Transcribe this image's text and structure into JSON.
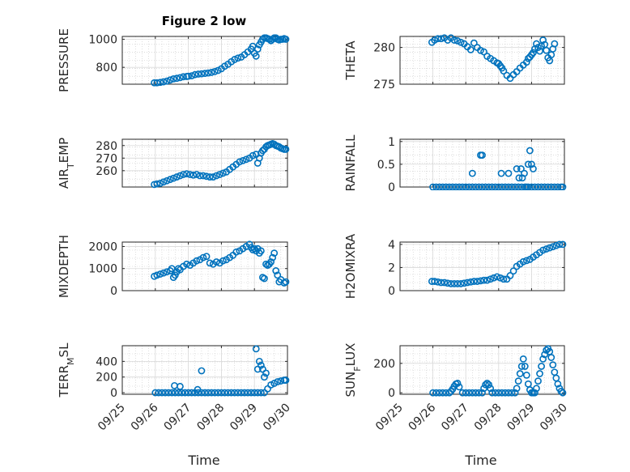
{
  "figure": {
    "title": "Figure 2 low"
  },
  "chart_data": [
    {
      "type": "scatter",
      "title": "Figure 2 low",
      "ylabel": "PRESSURE",
      "ylim": [
        680,
        1020
      ],
      "yticks": [
        800,
        1000
      ],
      "ytick_labels": [
        "800",
        "1000"
      ],
      "x": [
        0.97,
        1.05,
        1.15,
        1.25,
        1.35,
        1.45,
        1.55,
        1.65,
        1.75,
        1.85,
        1.95,
        2.0,
        2.1,
        2.2,
        2.3,
        2.4,
        2.5,
        2.6,
        2.7,
        2.8,
        2.9,
        3.0,
        3.1,
        3.2,
        3.3,
        3.4,
        3.5,
        3.6,
        3.7,
        3.8,
        3.9,
        3.95,
        4.0,
        4.05,
        4.1,
        4.15,
        4.2,
        4.25,
        4.3,
        4.35,
        4.4,
        4.45,
        4.5,
        4.55,
        4.6,
        4.65,
        4.7,
        4.75,
        4.8,
        4.85,
        4.9,
        4.95
      ],
      "y": [
        690,
        690,
        693,
        697,
        702,
        710,
        718,
        722,
        727,
        733,
        735,
        737,
        740,
        748,
        752,
        754,
        757,
        760,
        764,
        770,
        778,
        790,
        808,
        822,
        840,
        856,
        866,
        873,
        890,
        910,
        930,
        950,
        900,
        880,
        930,
        960,
        980,
        1000,
        1010,
        1010,
        1005,
        1000,
        990,
        1000,
        1010,
        1010,
        1000,
        995,
        1000,
        1000,
        1005,
        1000
      ]
    },
    {
      "type": "scatter",
      "ylabel": "THETA",
      "ylim": [
        275,
        281.5
      ],
      "yticks": [
        275,
        280
      ],
      "ytick_labels": [
        "275",
        "280"
      ],
      "x": [
        0.97,
        1.05,
        1.15,
        1.25,
        1.35,
        1.45,
        1.55,
        1.65,
        1.75,
        1.85,
        1.95,
        2.05,
        2.15,
        2.25,
        2.35,
        2.45,
        2.55,
        2.65,
        2.75,
        2.85,
        2.95,
        3.0,
        3.05,
        3.1,
        3.15,
        3.25,
        3.35,
        3.45,
        3.55,
        3.65,
        3.75,
        3.85,
        3.9,
        3.95,
        4.0,
        4.05,
        4.1,
        4.15,
        4.2,
        4.25,
        4.3,
        4.35,
        4.4,
        4.45,
        4.5,
        4.55,
        4.6,
        4.65,
        4.7
      ],
      "y": [
        280.7,
        281.0,
        281.2,
        281.2,
        281.3,
        281.0,
        281.3,
        281.0,
        280.9,
        280.7,
        280.5,
        280.1,
        279.7,
        280.6,
        280.0,
        279.6,
        279.4,
        278.8,
        278.5,
        278.2,
        277.9,
        277.8,
        277.5,
        277.2,
        276.8,
        276.2,
        275.8,
        276.3,
        276.7,
        277.2,
        277.6,
        278.0,
        278.5,
        278.7,
        279.0,
        279.3,
        279.8,
        280.5,
        280.0,
        279.5,
        280.2,
        281.0,
        280.4,
        279.6,
        278.6,
        278.2,
        279.0,
        279.8,
        280.5
      ]
    },
    {
      "type": "scatter",
      "ylabel": "AIR_TEMP",
      "ylim": [
        247,
        285
      ],
      "yticks": [
        260,
        270,
        280
      ],
      "ytick_labels": [
        "260",
        "270",
        "280"
      ],
      "x": [
        0.97,
        1.05,
        1.15,
        1.25,
        1.35,
        1.45,
        1.55,
        1.65,
        1.75,
        1.85,
        1.95,
        2.05,
        2.15,
        2.25,
        2.35,
        2.45,
        2.55,
        2.65,
        2.75,
        2.85,
        2.95,
        3.05,
        3.15,
        3.25,
        3.35,
        3.45,
        3.55,
        3.65,
        3.75,
        3.85,
        3.95,
        4.05,
        4.1,
        4.15,
        4.2,
        4.25,
        4.3,
        4.35,
        4.4,
        4.45,
        4.5,
        4.55,
        4.6,
        4.65,
        4.7,
        4.75,
        4.8,
        4.85,
        4.9,
        4.95
      ],
      "y": [
        249,
        249.5,
        250,
        251,
        252,
        253,
        254,
        255,
        256,
        257,
        257.5,
        257,
        256.5,
        257,
        256,
        256,
        255.5,
        255,
        255,
        256,
        257,
        258,
        259,
        261,
        263,
        265,
        267,
        268,
        269,
        270,
        272,
        273,
        266,
        270,
        274,
        276,
        277,
        279,
        280,
        280.5,
        281,
        281.5,
        281,
        280,
        279.5,
        279,
        278,
        277.5,
        277,
        277
      ]
    },
    {
      "type": "scatter",
      "ylabel": "RAINFALL",
      "ylim": [
        0,
        1.05
      ],
      "yticks": [
        0,
        0.5,
        1
      ],
      "ytick_labels": [
        "0",
        "0.5",
        "1"
      ],
      "x": [
        1.0,
        1.1,
        1.2,
        1.3,
        1.4,
        1.5,
        1.6,
        1.7,
        1.8,
        1.9,
        2.0,
        2.1,
        2.2,
        2.3,
        2.4,
        2.5,
        2.6,
        2.7,
        2.8,
        2.9,
        3.0,
        3.1,
        3.2,
        3.3,
        3.4,
        3.5,
        3.6,
        3.7,
        3.8,
        3.9,
        4.0,
        4.1,
        4.2,
        4.3,
        4.4,
        4.5,
        4.6,
        4.7,
        4.8,
        4.9,
        4.95,
        2.2,
        2.45,
        2.5,
        3.08,
        3.3,
        3.55,
        3.62,
        3.68,
        3.72,
        3.78,
        3.85,
        3.9,
        3.95,
        4.0,
        4.05
      ],
      "y": [
        0,
        0,
        0,
        0,
        0,
        0,
        0,
        0,
        0,
        0,
        0,
        0,
        0,
        0,
        0,
        0,
        0,
        0,
        0,
        0,
        0,
        0,
        0,
        0,
        0,
        0,
        0,
        0,
        0,
        0,
        0,
        0,
        0,
        0,
        0,
        0,
        0,
        0,
        0,
        0,
        0,
        0.3,
        0.7,
        0.7,
        0.3,
        0.3,
        0.4,
        0.2,
        0.4,
        0.2,
        0.3,
        0.0,
        0.5,
        0.8,
        0.5,
        0.4
      ]
    },
    {
      "type": "scatter",
      "ylabel": "MIXDEPTH",
      "ylim": [
        0,
        2200
      ],
      "yticks": [
        0,
        1000,
        2000
      ],
      "ytick_labels": [
        "0",
        "1000",
        "2000"
      ],
      "x": [
        0.97,
        1.05,
        1.15,
        1.25,
        1.35,
        1.45,
        1.5,
        1.55,
        1.6,
        1.65,
        1.7,
        1.75,
        1.85,
        1.95,
        2.05,
        2.15,
        2.25,
        2.35,
        2.45,
        2.55,
        2.65,
        2.75,
        2.85,
        2.95,
        3.05,
        3.15,
        3.25,
        3.35,
        3.45,
        3.55,
        3.65,
        3.75,
        3.85,
        3.9,
        3.95,
        4.0,
        4.05,
        4.1,
        4.15,
        4.2,
        4.25,
        4.3,
        4.35,
        4.4,
        4.45,
        4.5,
        4.55,
        4.6,
        4.65,
        4.7,
        4.75,
        4.8,
        4.9,
        4.95
      ],
      "y": [
        650,
        700,
        750,
        800,
        850,
        900,
        1000,
        600,
        700,
        850,
        1000,
        950,
        1100,
        1200,
        1150,
        1250,
        1350,
        1400,
        1500,
        1550,
        1250,
        1200,
        1300,
        1250,
        1350,
        1400,
        1500,
        1600,
        1750,
        1800,
        1900,
        2000,
        2100,
        1950,
        1850,
        1900,
        1800,
        1900,
        1700,
        1800,
        600,
        550,
        1200,
        1150,
        1200,
        1300,
        1500,
        1700,
        900,
        700,
        400,
        500,
        350,
        400
      ]
    },
    {
      "type": "scatter",
      "ylabel": "H2OMIXRA",
      "ylim": [
        0,
        4.2
      ],
      "yticks": [
        0,
        2,
        4
      ],
      "ytick_labels": [
        "0",
        "2",
        "4"
      ],
      "x": [
        0.97,
        1.05,
        1.15,
        1.25,
        1.35,
        1.45,
        1.55,
        1.65,
        1.75,
        1.85,
        1.95,
        2.05,
        2.15,
        2.25,
        2.35,
        2.45,
        2.55,
        2.65,
        2.75,
        2.85,
        2.95,
        3.05,
        3.15,
        3.25,
        3.35,
        3.45,
        3.55,
        3.65,
        3.75,
        3.85,
        3.95,
        4.05,
        4.15,
        4.25,
        4.35,
        4.45,
        4.55,
        4.65,
        4.75,
        4.85,
        4.95
      ],
      "y": [
        0.8,
        0.8,
        0.75,
        0.7,
        0.7,
        0.65,
        0.6,
        0.6,
        0.6,
        0.6,
        0.65,
        0.7,
        0.75,
        0.8,
        0.8,
        0.85,
        0.9,
        0.9,
        1.0,
        1.1,
        1.2,
        1.1,
        1.0,
        1.0,
        1.3,
        1.7,
        2.1,
        2.3,
        2.5,
        2.6,
        2.7,
        2.9,
        3.1,
        3.3,
        3.5,
        3.6,
        3.7,
        3.8,
        3.9,
        4.0,
        4.0
      ]
    },
    {
      "type": "scatter",
      "ylabel": "TERR_MSL",
      "ylim": [
        -20,
        600
      ],
      "yticks": [
        0,
        200,
        400
      ],
      "ytick_labels": [
        "0",
        "200",
        "400"
      ],
      "x": [
        1.0,
        1.1,
        1.2,
        1.3,
        1.4,
        1.5,
        1.6,
        1.7,
        1.8,
        1.9,
        2.0,
        2.1,
        2.2,
        2.3,
        2.4,
        2.5,
        2.6,
        2.7,
        2.8,
        2.9,
        3.0,
        3.1,
        3.2,
        3.3,
        3.4,
        3.5,
        3.6,
        3.7,
        3.8,
        3.9,
        4.0,
        4.1,
        4.2,
        4.3,
        4.4,
        4.5,
        4.6,
        4.7,
        4.8,
        4.9,
        4.95,
        1.58,
        1.75,
        2.4,
        2.28,
        4.05,
        4.1,
        4.15,
        4.2,
        4.25,
        4.3,
        4.35
      ],
      "y": [
        0,
        0,
        0,
        0,
        0,
        0,
        0,
        0,
        0,
        0,
        0,
        0,
        0,
        0,
        0,
        0,
        0,
        0,
        0,
        0,
        0,
        0,
        0,
        0,
        0,
        0,
        0,
        0,
        0,
        0,
        0,
        0,
        0,
        0,
        50,
        100,
        120,
        140,
        150,
        160,
        160,
        90,
        80,
        280,
        40,
        560,
        300,
        400,
        350,
        300,
        200,
        250
      ]
    },
    {
      "type": "scatter",
      "ylabel": "SUN_FLUX",
      "ylim": [
        -10,
        320
      ],
      "yticks": [
        0,
        200
      ],
      "ytick_labels": [
        "0",
        "200"
      ],
      "x": [
        1.0,
        1.1,
        1.2,
        1.3,
        1.4,
        1.5,
        1.55,
        1.6,
        1.65,
        1.7,
        1.75,
        1.8,
        1.9,
        2.0,
        2.1,
        2.2,
        2.3,
        2.4,
        2.5,
        2.55,
        2.6,
        2.65,
        2.7,
        2.75,
        2.8,
        2.9,
        3.0,
        3.1,
        3.2,
        3.3,
        3.4,
        3.5,
        3.55,
        3.6,
        3.65,
        3.7,
        3.75,
        3.8,
        3.85,
        3.9,
        3.95,
        4.0,
        4.05,
        4.1,
        4.15,
        4.2,
        4.25,
        4.3,
        4.35,
        4.4,
        4.45,
        4.5,
        4.55,
        4.6,
        4.65,
        4.7,
        4.75,
        4.8,
        4.85,
        4.9,
        4.95
      ],
      "y": [
        0,
        0,
        0,
        0,
        0,
        0,
        10,
        25,
        45,
        60,
        65,
        40,
        0,
        0,
        0,
        0,
        0,
        0,
        0,
        30,
        55,
        65,
        55,
        30,
        0,
        0,
        0,
        0,
        0,
        0,
        0,
        0,
        30,
        80,
        130,
        180,
        230,
        180,
        120,
        60,
        20,
        0,
        0,
        0,
        30,
        80,
        130,
        180,
        230,
        260,
        290,
        300,
        280,
        240,
        190,
        140,
        100,
        60,
        30,
        10,
        0
      ]
    }
  ],
  "x_axis": {
    "tick_labels": [
      "09/25",
      "09/26",
      "09/27",
      "09/28",
      "09/29",
      "09/30"
    ],
    "label": "Time"
  },
  "ylabels_display": [
    {
      "main": "PRESSURE"
    },
    {
      "main": "THETA"
    },
    {
      "pre": "AIR",
      "sub": "T",
      "post": "EMP"
    },
    {
      "main": "RAINFALL"
    },
    {
      "main": "MIXDEPTH"
    },
    {
      "main": "H2OMIXRA"
    },
    {
      "pre": "TERR",
      "sub": "M",
      "post": "SL"
    },
    {
      "pre": "SUN",
      "sub": "F",
      "post": "LUX"
    }
  ],
  "colors": {
    "marker": "#0072BD",
    "grid": "#c8c8c8",
    "axis": "#262626"
  }
}
